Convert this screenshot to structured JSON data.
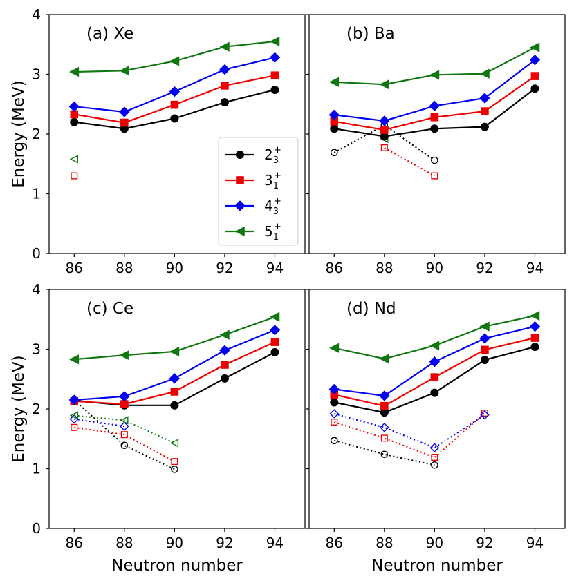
{
  "chart_data": {
    "type": "line",
    "xlabel": "Neutron number",
    "ylabel": "Energy (MeV)",
    "xlim": [
      85,
      95.2
    ],
    "ylim": [
      0,
      4
    ],
    "xticks": [
      86,
      88,
      90,
      92,
      94
    ],
    "yticks": [
      0,
      1,
      2,
      3,
      4
    ],
    "series_styles": [
      {
        "key": "s2",
        "color": "#000000",
        "marker": "circle",
        "label_main": "2",
        "label_sub": "3",
        "label_sup": "+"
      },
      {
        "key": "s3",
        "color": "#ee0000",
        "marker": "square",
        "label_main": "3",
        "label_sub": "1",
        "label_sup": "+"
      },
      {
        "key": "s4",
        "color": "#0000ee",
        "marker": "diamond",
        "label_main": "4",
        "label_sub": "3",
        "label_sup": "+"
      },
      {
        "key": "s5",
        "color": "#117711",
        "marker": "triangle-left",
        "label_main": "5",
        "label_sub": "1",
        "label_sup": "+"
      }
    ],
    "panels": [
      {
        "title": "(a) Xe",
        "solid": {
          "s2": {
            "x": [
              86,
              88,
              90,
              92,
              94
            ],
            "y": [
              2.2,
              2.09,
              2.26,
              2.53,
              2.74
            ]
          },
          "s3": {
            "x": [
              86,
              88,
              90,
              92,
              94
            ],
            "y": [
              2.33,
              2.19,
              2.49,
              2.81,
              2.98
            ]
          },
          "s4": {
            "x": [
              86,
              88,
              90,
              92,
              94
            ],
            "y": [
              2.46,
              2.37,
              2.71,
              3.08,
              3.28
            ]
          },
          "s5": {
            "x": [
              86,
              88,
              90,
              92,
              94
            ],
            "y": [
              3.04,
              3.06,
              3.22,
              3.46,
              3.55
            ]
          }
        },
        "open": {
          "s3": {
            "x": [
              86
            ],
            "y": [
              1.3
            ]
          },
          "s5": {
            "x": [
              86
            ],
            "y": [
              1.58
            ]
          }
        }
      },
      {
        "title": "(b) Ba",
        "solid": {
          "s2": {
            "x": [
              86,
              88,
              90,
              92,
              94
            ],
            "y": [
              2.09,
              1.96,
              2.09,
              2.12,
              2.76
            ]
          },
          "s3": {
            "x": [
              86,
              88,
              90,
              92,
              94
            ],
            "y": [
              2.21,
              2.07,
              2.28,
              2.38,
              2.97
            ]
          },
          "s4": {
            "x": [
              86,
              88,
              90,
              92,
              94
            ],
            "y": [
              2.32,
              2.22,
              2.47,
              2.6,
              3.24
            ]
          },
          "s5": {
            "x": [
              86,
              88,
              90,
              92,
              94
            ],
            "y": [
              2.87,
              2.83,
              2.99,
              3.01,
              3.45
            ]
          }
        },
        "open": {
          "s2": {
            "x": [
              86,
              88,
              90
            ],
            "y": [
              1.69,
              2.15,
              1.56
            ]
          },
          "s3": {
            "x": [
              88,
              90
            ],
            "y": [
              1.77,
              1.3
            ]
          },
          "s5": {
            "x": [
              88
            ],
            "y": [
              1.92
            ]
          }
        }
      },
      {
        "title": "(c) Ce",
        "solid": {
          "s2": {
            "x": [
              86,
              88,
              90,
              92,
              94
            ],
            "y": [
              2.14,
              2.06,
              2.06,
              2.51,
              2.95
            ]
          },
          "s3": {
            "x": [
              86,
              88,
              90,
              92,
              94
            ],
            "y": [
              2.13,
              2.08,
              2.29,
              2.74,
              3.12
            ]
          },
          "s4": {
            "x": [
              86,
              88,
              90,
              92,
              94
            ],
            "y": [
              2.15,
              2.21,
              2.51,
              2.98,
              3.32
            ]
          },
          "s5": {
            "x": [
              86,
              88,
              90,
              92,
              94
            ],
            "y": [
              2.83,
              2.9,
              2.96,
              3.24,
              3.54
            ]
          }
        },
        "open": {
          "s2": {
            "x": [
              86,
              88,
              90
            ],
            "y": [
              2.15,
              1.39,
              0.99
            ]
          },
          "s3": {
            "x": [
              86,
              88,
              90
            ],
            "y": [
              1.69,
              1.57,
              1.12
            ]
          },
          "s4": {
            "x": [
              86,
              88
            ],
            "y": [
              1.83,
              1.71
            ]
          },
          "s5": {
            "x": [
              86,
              88,
              90
            ],
            "y": [
              1.89,
              1.81,
              1.43
            ]
          }
        }
      },
      {
        "title": "(d) Nd",
        "solid": {
          "s2": {
            "x": [
              86,
              88,
              90,
              92,
              94
            ],
            "y": [
              2.11,
              1.94,
              2.27,
              2.82,
              3.04
            ]
          },
          "s3": {
            "x": [
              86,
              88,
              90,
              92,
              94
            ],
            "y": [
              2.24,
              2.05,
              2.53,
              2.99,
              3.19
            ]
          },
          "s4": {
            "x": [
              86,
              88,
              90,
              92,
              94
            ],
            "y": [
              2.33,
              2.22,
              2.79,
              3.18,
              3.38
            ]
          },
          "s5": {
            "x": [
              86,
              88,
              90,
              92,
              94
            ],
            "y": [
              3.02,
              2.84,
              3.06,
              3.38,
              3.56
            ]
          }
        },
        "open": {
          "s2": {
            "x": [
              86,
              88,
              90
            ],
            "y": [
              1.47,
              1.24,
              1.06
            ]
          },
          "s3": {
            "x": [
              86,
              88,
              90,
              92
            ],
            "y": [
              1.78,
              1.51,
              1.19,
              1.93
            ]
          },
          "s4": {
            "x": [
              86,
              88,
              90,
              92
            ],
            "y": [
              1.92,
              1.69,
              1.35,
              1.9
            ]
          }
        }
      }
    ]
  }
}
